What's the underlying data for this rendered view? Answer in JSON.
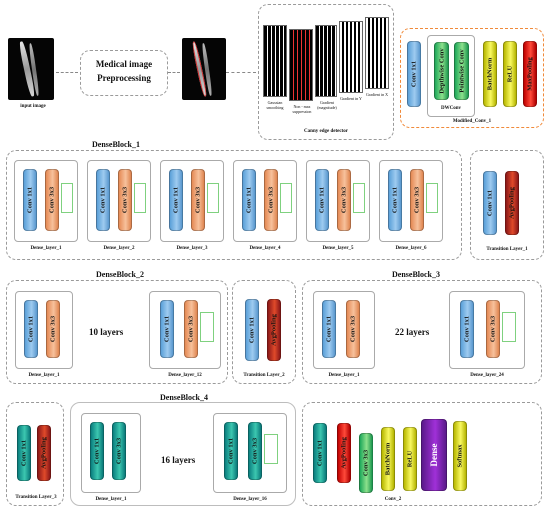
{
  "top": {
    "input_label": "input image",
    "preprocess_label_1": "Medical image",
    "preprocess_label_2": "Preprocessing",
    "canny_label": "Canny edge detector",
    "canny_steps": [
      "Gaussian smoothing",
      "Non - max suppression",
      "Gradient (magnitude)",
      "Gradient in Y",
      "Gradient in X"
    ],
    "modified_conv": {
      "title": "Modified_Conv_1",
      "conv": "Conv 1x1",
      "dw_title": "DWConv",
      "depthwise": "Depthwise Conv",
      "pointwise": "Pointwise Conv",
      "batchnorm": "BatchNorm",
      "relu": "ReLU",
      "maxpool": "MaxPooling"
    }
  },
  "block1": {
    "title": "DenseBlock_1",
    "layers": [
      "Dense_layer_1",
      "Dense_layer_2",
      "Dense_layer_3",
      "Dense_layer_4",
      "Dense_layer_5",
      "Dense_layer_6"
    ],
    "conv": "Conv 1x1",
    "conv3": "Conv 3x3",
    "transition": "Transition Layer_1",
    "avg": "AvgPooling"
  },
  "block2": {
    "title": "DenseBlock_2",
    "first": "Dense_layer_1",
    "last": "Dense_layer_12",
    "count": "10 layers",
    "transition": "Transition Layer_2"
  },
  "block3": {
    "title": "DenseBlock_3",
    "first": "Dense_layer_1",
    "last": "Dense_layer_24",
    "count": "22 layers"
  },
  "block4": {
    "title": "DenseBlock_4",
    "first": "Dense_layer_1",
    "last": "Dense_layer_16",
    "count": "16 layers",
    "transition": "Transition Layer_3"
  },
  "conv2": {
    "title": "Conv_2",
    "conv": "Conv 1x1",
    "avg": "AvgPooling",
    "conv3": "Conv 3x3",
    "batchnorm": "BatchNorm",
    "relu": "ReLU",
    "dense": "Dense",
    "softmax": "Softmax"
  }
}
